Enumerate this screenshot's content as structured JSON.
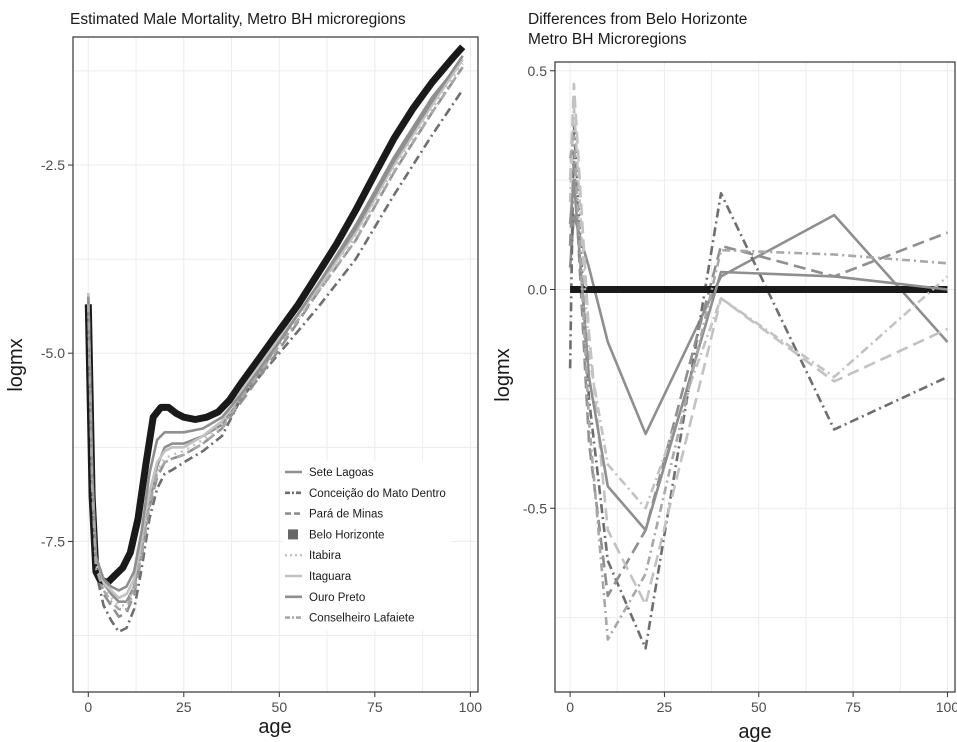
{
  "colors": {
    "belo_horizonte": "#1a1a1a",
    "dark_gray": "#6e6e6e",
    "mid_gray": "#8f8f8f",
    "light_gray": "#c2c2c2",
    "grid": "#ececec",
    "axis": "#333333"
  },
  "chart_data": [
    {
      "type": "line",
      "title": "Estimated Male Mortality, Metro BH microregions",
      "xlabel": "age",
      "ylabel": "logmx",
      "xlim": [
        -4,
        102
      ],
      "ylim": [
        -9.5,
        -0.8
      ],
      "xticks": [
        0,
        25,
        50,
        75,
        100
      ],
      "xtick_labels": [
        "0",
        "25",
        "50",
        "75",
        "100"
      ],
      "yticks": [
        -2.5,
        -5.0,
        -7.5
      ],
      "ytick_labels": [
        "-2.5",
        "-5.0",
        "-7.5"
      ],
      "grid": true,
      "legend_position": "bottom-right-inside",
      "legend": [
        "Sete Lagoas",
        "Conceição do Mato Dentro",
        "Pará de Minas",
        "Belo Horizonte",
        "Itabira",
        "Itaguara",
        "Ouro Preto",
        "Conselheiro Lafaiete"
      ],
      "series": [
        {
          "name": "Sete Lagoas",
          "color": "#8f8f8f",
          "dash": "",
          "width": 2.6,
          "x": [
            0,
            1,
            2,
            4,
            6,
            8,
            10,
            12,
            14,
            16,
            18,
            20,
            22,
            25,
            30,
            35,
            40,
            45,
            50,
            60,
            70,
            80,
            90,
            98
          ],
          "y": [
            -4.3,
            -6.6,
            -7.7,
            -8.05,
            -8.2,
            -8.3,
            -8.3,
            -8.1,
            -7.6,
            -7.0,
            -6.5,
            -6.25,
            -6.2,
            -6.2,
            -6.1,
            -5.95,
            -5.6,
            -5.25,
            -4.85,
            -4.1,
            -3.3,
            -2.4,
            -1.6,
            -1.1
          ]
        },
        {
          "name": "Conceição do Mato Dentro",
          "color": "#6e6e6e",
          "dash": "9,4,2,4",
          "width": 2.6,
          "x": [
            0,
            1,
            2,
            4,
            6,
            8,
            10,
            12,
            14,
            16,
            18,
            20,
            22,
            25,
            30,
            35,
            40,
            45,
            50,
            60,
            70,
            80,
            90,
            98
          ],
          "y": [
            -4.5,
            -6.9,
            -7.9,
            -8.35,
            -8.55,
            -8.7,
            -8.65,
            -8.4,
            -7.85,
            -7.2,
            -6.8,
            -6.6,
            -6.55,
            -6.45,
            -6.3,
            -6.1,
            -5.6,
            -5.3,
            -5.0,
            -4.4,
            -3.75,
            -2.9,
            -2.1,
            -1.5
          ]
        },
        {
          "name": "Pará de Minas",
          "color": "#8f8f8f",
          "dash": "12,6",
          "width": 2.6,
          "x": [
            0,
            1,
            2,
            4,
            6,
            8,
            10,
            12,
            14,
            16,
            18,
            20,
            22,
            25,
            30,
            35,
            40,
            45,
            50,
            60,
            70,
            80,
            90,
            98
          ],
          "y": [
            -4.4,
            -6.7,
            -7.8,
            -8.2,
            -8.35,
            -8.5,
            -8.45,
            -8.2,
            -7.7,
            -7.05,
            -6.65,
            -6.45,
            -6.4,
            -6.35,
            -6.2,
            -6.0,
            -5.65,
            -5.3,
            -4.95,
            -4.2,
            -3.5,
            -2.6,
            -1.8,
            -1.2
          ]
        },
        {
          "name": "Belo Horizonte",
          "color": "#1a1a1a",
          "dash": "",
          "width": 7,
          "x": [
            0,
            1,
            2,
            3,
            5,
            7,
            9,
            11,
            13,
            15,
            17,
            19,
            21,
            23,
            25,
            28,
            31,
            34,
            37,
            40,
            45,
            50,
            55,
            60,
            65,
            70,
            75,
            80,
            85,
            90,
            95,
            98
          ],
          "y": [
            -4.35,
            -6.9,
            -7.9,
            -8.0,
            -8.05,
            -7.95,
            -7.85,
            -7.65,
            -7.2,
            -6.5,
            -5.85,
            -5.72,
            -5.72,
            -5.8,
            -5.85,
            -5.88,
            -5.85,
            -5.78,
            -5.62,
            -5.4,
            -5.05,
            -4.7,
            -4.35,
            -3.95,
            -3.55,
            -3.1,
            -2.62,
            -2.15,
            -1.75,
            -1.4,
            -1.1,
            -0.93
          ]
        },
        {
          "name": "Itabira",
          "color": "#c2c2c2",
          "dash": "2,5",
          "width": 2.6,
          "x": [
            0,
            1,
            2,
            4,
            6,
            8,
            10,
            12,
            14,
            16,
            18,
            20,
            22,
            25,
            30,
            35,
            40,
            45,
            50,
            60,
            70,
            80,
            90,
            98
          ],
          "y": [
            -4.3,
            -6.7,
            -7.8,
            -8.1,
            -8.25,
            -8.35,
            -8.35,
            -8.1,
            -7.6,
            -6.95,
            -6.55,
            -6.4,
            -6.35,
            -6.3,
            -6.15,
            -5.95,
            -5.55,
            -5.2,
            -4.85,
            -4.2,
            -3.45,
            -2.55,
            -1.75,
            -1.15
          ]
        },
        {
          "name": "Itaguara",
          "color": "#c2c2c2",
          "dash": "",
          "width": 2.6,
          "x": [
            0,
            1,
            2,
            4,
            6,
            8,
            10,
            12,
            14,
            16,
            18,
            20,
            22,
            25,
            30,
            35,
            40,
            45,
            50,
            60,
            70,
            80,
            90,
            98
          ],
          "y": [
            -4.2,
            -6.6,
            -7.7,
            -8.05,
            -8.15,
            -8.25,
            -8.2,
            -8.0,
            -7.5,
            -6.85,
            -6.45,
            -6.3,
            -6.25,
            -6.25,
            -6.1,
            -5.9,
            -5.5,
            -5.15,
            -4.8,
            -4.15,
            -3.4,
            -2.5,
            -1.7,
            -1.1
          ]
        },
        {
          "name": "Ouro Preto",
          "color": "#8f8f8f",
          "dash": "",
          "width": 2.6,
          "x": [
            0,
            1,
            2,
            4,
            6,
            8,
            10,
            12,
            14,
            16,
            18,
            20,
            22,
            25,
            30,
            35,
            40,
            45,
            50,
            60,
            70,
            80,
            90,
            98
          ],
          "y": [
            -4.25,
            -6.6,
            -7.7,
            -8.0,
            -8.1,
            -8.15,
            -8.1,
            -7.9,
            -7.35,
            -6.6,
            -6.15,
            -6.05,
            -6.05,
            -6.05,
            -6.0,
            -5.85,
            -5.55,
            -5.2,
            -4.85,
            -4.1,
            -3.35,
            -2.45,
            -1.65,
            -1.05
          ]
        },
        {
          "name": "Conselheiro Lafaiete",
          "color": "#a8a8a8",
          "dash": "8,4,2,4",
          "width": 2.6,
          "x": [
            0,
            1,
            2,
            4,
            6,
            8,
            10,
            12,
            14,
            16,
            18,
            20,
            22,
            25,
            30,
            35,
            40,
            45,
            50,
            60,
            70,
            80,
            90,
            98
          ],
          "y": [
            -4.35,
            -6.75,
            -7.85,
            -8.15,
            -8.3,
            -8.4,
            -8.4,
            -8.15,
            -7.65,
            -7.0,
            -6.6,
            -6.45,
            -6.4,
            -6.35,
            -6.2,
            -6.0,
            -5.6,
            -5.25,
            -4.9,
            -4.2,
            -3.5,
            -2.6,
            -1.8,
            -1.2
          ]
        }
      ]
    },
    {
      "type": "line",
      "title": "Differences from Belo Horizonte",
      "subtitle": "Metro BH Microregions",
      "xlabel": "age",
      "ylabel": "logmx",
      "xlim": [
        -4,
        102
      ],
      "ylim": [
        -0.92,
        0.52
      ],
      "xticks": [
        0,
        25,
        50,
        75,
        100
      ],
      "xtick_labels": [
        "0",
        "25",
        "50",
        "75",
        "100"
      ],
      "yticks": [
        0.5,
        0.0,
        -0.5
      ],
      "ytick_labels": [
        "0.5",
        "0.0",
        "-0.5"
      ],
      "grid": true,
      "series": [
        {
          "name": "Sete Lagoas",
          "color": "#8f8f8f",
          "dash": "",
          "width": 2.6,
          "x": [
            0,
            1,
            5,
            10,
            20,
            40,
            70,
            100
          ],
          "y": [
            0.05,
            0.17,
            0.05,
            -0.12,
            -0.33,
            0.03,
            0.17,
            -0.12
          ]
        },
        {
          "name": "Conceição do Mato Dentro",
          "color": "#6e6e6e",
          "dash": "9,4,2,4",
          "width": 2.6,
          "x": [
            0,
            1,
            5,
            10,
            20,
            40,
            70,
            100
          ],
          "y": [
            -0.18,
            0.38,
            -0.25,
            -0.62,
            -0.82,
            0.22,
            -0.32,
            -0.2
          ]
        },
        {
          "name": "Pará de Minas",
          "color": "#8f8f8f",
          "dash": "12,6",
          "width": 2.6,
          "x": [
            0,
            1,
            5,
            10,
            20,
            40,
            70,
            100
          ],
          "y": [
            0.1,
            0.3,
            -0.35,
            -0.7,
            -0.55,
            0.1,
            0.03,
            0.13
          ]
        },
        {
          "name": "Belo Horizonte",
          "color": "#1a1a1a",
          "dash": "",
          "width": 7,
          "x": [
            0,
            100
          ],
          "y": [
            0.0,
            0.0
          ]
        },
        {
          "name": "Itabira",
          "color": "#c2c2c2",
          "dash": "9,4,2,4",
          "width": 2.6,
          "x": [
            0,
            1,
            5,
            10,
            20,
            40,
            70,
            100
          ],
          "y": [
            0.2,
            0.42,
            -0.15,
            -0.4,
            -0.5,
            -0.02,
            -0.2,
            0.03
          ]
        },
        {
          "name": "Itaguara",
          "color": "#c2c2c2",
          "dash": "12,6",
          "width": 2.6,
          "x": [
            0,
            1,
            5,
            10,
            20,
            40,
            70,
            100
          ],
          "y": [
            0.25,
            0.47,
            -0.1,
            -0.55,
            -0.72,
            -0.02,
            -0.21,
            -0.09
          ]
        },
        {
          "name": "Ouro Preto",
          "color": "#8f8f8f",
          "dash": "",
          "width": 2.6,
          "x": [
            0,
            1,
            5,
            10,
            20,
            40,
            70,
            100
          ],
          "y": [
            0.15,
            0.25,
            -0.2,
            -0.45,
            -0.55,
            0.04,
            0.03,
            0.0
          ]
        },
        {
          "name": "Conselheiro Lafaiete",
          "color": "#a8a8a8",
          "dash": "8,4,2,4",
          "width": 2.6,
          "x": [
            0,
            1,
            5,
            10,
            20,
            40,
            70,
            100
          ],
          "y": [
            0.3,
            0.35,
            -0.3,
            -0.8,
            -0.65,
            0.09,
            0.08,
            0.06
          ]
        }
      ]
    }
  ]
}
